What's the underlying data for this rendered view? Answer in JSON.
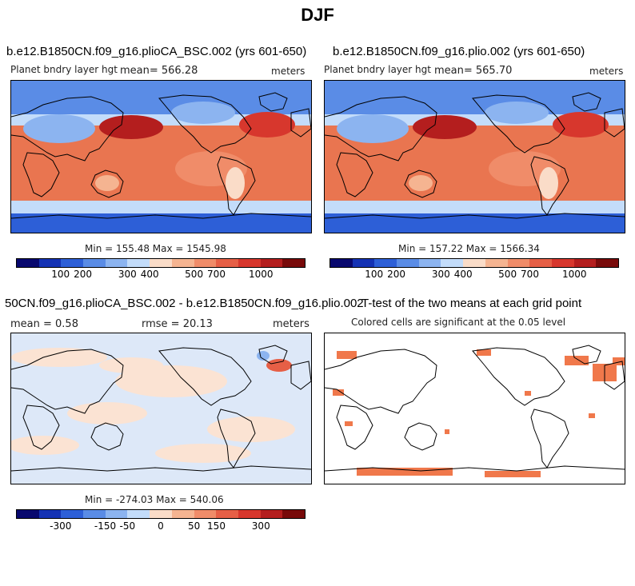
{
  "title": "DJF",
  "colors": {
    "scale": [
      "#08086e",
      "#1432b4",
      "#2d5fd7",
      "#5a8ce6",
      "#8cb4f0",
      "#c3dcfa",
      "#fadcc8",
      "#f5b491",
      "#f08c69",
      "#e65f46",
      "#d7372d",
      "#b41e1e",
      "#780a0a"
    ],
    "diff_sig": "#f0784b"
  },
  "panels": [
    {
      "title": "b.e12.B1850CN.f09_g16.plioCA_BSC.002 (yrs 601-650)",
      "left_label": "Planet bndry layer hgt",
      "mean_label": "mean= 566.28",
      "units": "meters",
      "minmax": "Min = 155.48 Max = 1545.98"
    },
    {
      "title": "b.e12.B1850CN.f09_g16.plio.002 (yrs 601-650)",
      "left_label": "Planet bndry layer hgt",
      "mean_label": "mean= 565.70",
      "units": "meters",
      "minmax": "Min = 157.22 Max = 1566.34"
    },
    {
      "title": "50CN.f09_g16.plioCA_BSC.002 - b.e12.B1850CN.f09_g16.plio.002",
      "mean_label": "mean =    0.58",
      "rmse_label": "rmse =   20.13",
      "units": "meters",
      "minmax": "Min = -274.03 Max = 540.06"
    },
    {
      "title": "T-test of the two means at each grid point",
      "subtitle": "Colored cells are significant at the 0.05 level"
    }
  ],
  "chart_data": [
    {
      "type": "heatmap",
      "title": "b.e12.B1850CN.f09_g16.plioCA_BSC.002 (yrs 601-650)",
      "field": "Planet bndry layer hgt",
      "units": "meters",
      "mean": 566.28,
      "min": 155.48,
      "max": 1545.98,
      "colorbar_ticks": [
        "100",
        "200",
        "300",
        "400",
        "500",
        "700",
        "1000"
      ]
    },
    {
      "type": "heatmap",
      "title": "b.e12.B1850CN.f09_g16.plio.002 (yrs 601-650)",
      "field": "Planet bndry layer hgt",
      "units": "meters",
      "mean": 565.7,
      "min": 157.22,
      "max": 1566.34,
      "colorbar_ticks": [
        "100",
        "200",
        "300",
        "400",
        "500",
        "700",
        "1000"
      ]
    },
    {
      "type": "heatmap",
      "title": "50CN.f09_g16.plioCA_BSC.002 - b.e12.B1850CN.f09_g16.plio.002",
      "units": "meters",
      "mean": 0.58,
      "rmse": 20.13,
      "min": -274.03,
      "max": 540.06,
      "colorbar_ticks": [
        "-300",
        "-150",
        "-50",
        "0",
        "50",
        "150",
        "300"
      ]
    },
    {
      "type": "heatmap",
      "title": "T-test of the two means at each grid point",
      "subtitle": "Colored cells are significant at the 0.05 level"
    }
  ]
}
